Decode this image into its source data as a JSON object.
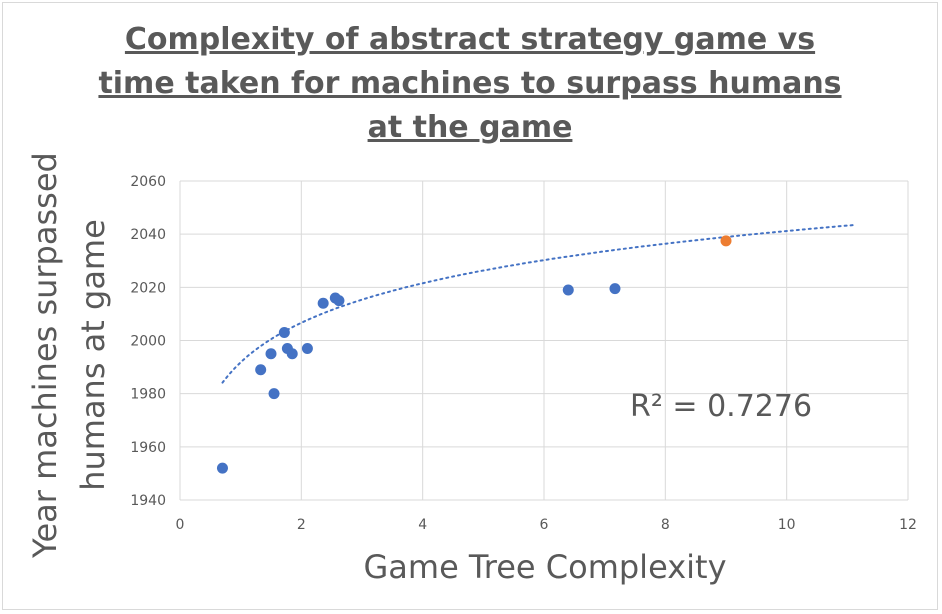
{
  "chart_data": {
    "type": "scatter",
    "title": "Complexity of abstract strategy game vs time taken for machines to surpass humans at the game",
    "xlabel": "Game Tree Complexity",
    "ylabel_line1": "Year machines surpassed",
    "ylabel_line2": "humans at game",
    "xlim": [
      0,
      12
    ],
    "ylim": [
      1940,
      2060
    ],
    "x_ticks": [
      "0",
      "2",
      "4",
      "6",
      "8",
      "10",
      "12"
    ],
    "y_ticks": [
      "1940",
      "1960",
      "1980",
      "2000",
      "2020",
      "2040",
      "2060"
    ],
    "grid": true,
    "series": [
      {
        "color": "#4472c4",
        "points": [
          {
            "x": 0.7,
            "y": 1952
          },
          {
            "x": 1.33,
            "y": 1989
          },
          {
            "x": 1.5,
            "y": 1995
          },
          {
            "x": 1.55,
            "y": 1980
          },
          {
            "x": 1.72,
            "y": 2003
          },
          {
            "x": 1.77,
            "y": 1997
          },
          {
            "x": 1.85,
            "y": 1995
          },
          {
            "x": 2.1,
            "y": 1997
          },
          {
            "x": 2.36,
            "y": 2014
          },
          {
            "x": 2.56,
            "y": 2016
          },
          {
            "x": 2.62,
            "y": 2015
          },
          {
            "x": 6.4,
            "y": 2019
          },
          {
            "x": 7.17,
            "y": 2019.5
          }
        ]
      },
      {
        "color": "#ed7d31",
        "points": [
          {
            "x": 9.0,
            "y": 2037.5
          }
        ]
      }
    ],
    "trendline": {
      "type": "logarithmic",
      "style": "dotted",
      "color": "#4472c4",
      "r_squared_label": "R² = 0.7276",
      "x_range": [
        0.7,
        11.1
      ],
      "a": 1991.8,
      "b": 21.45
    }
  }
}
